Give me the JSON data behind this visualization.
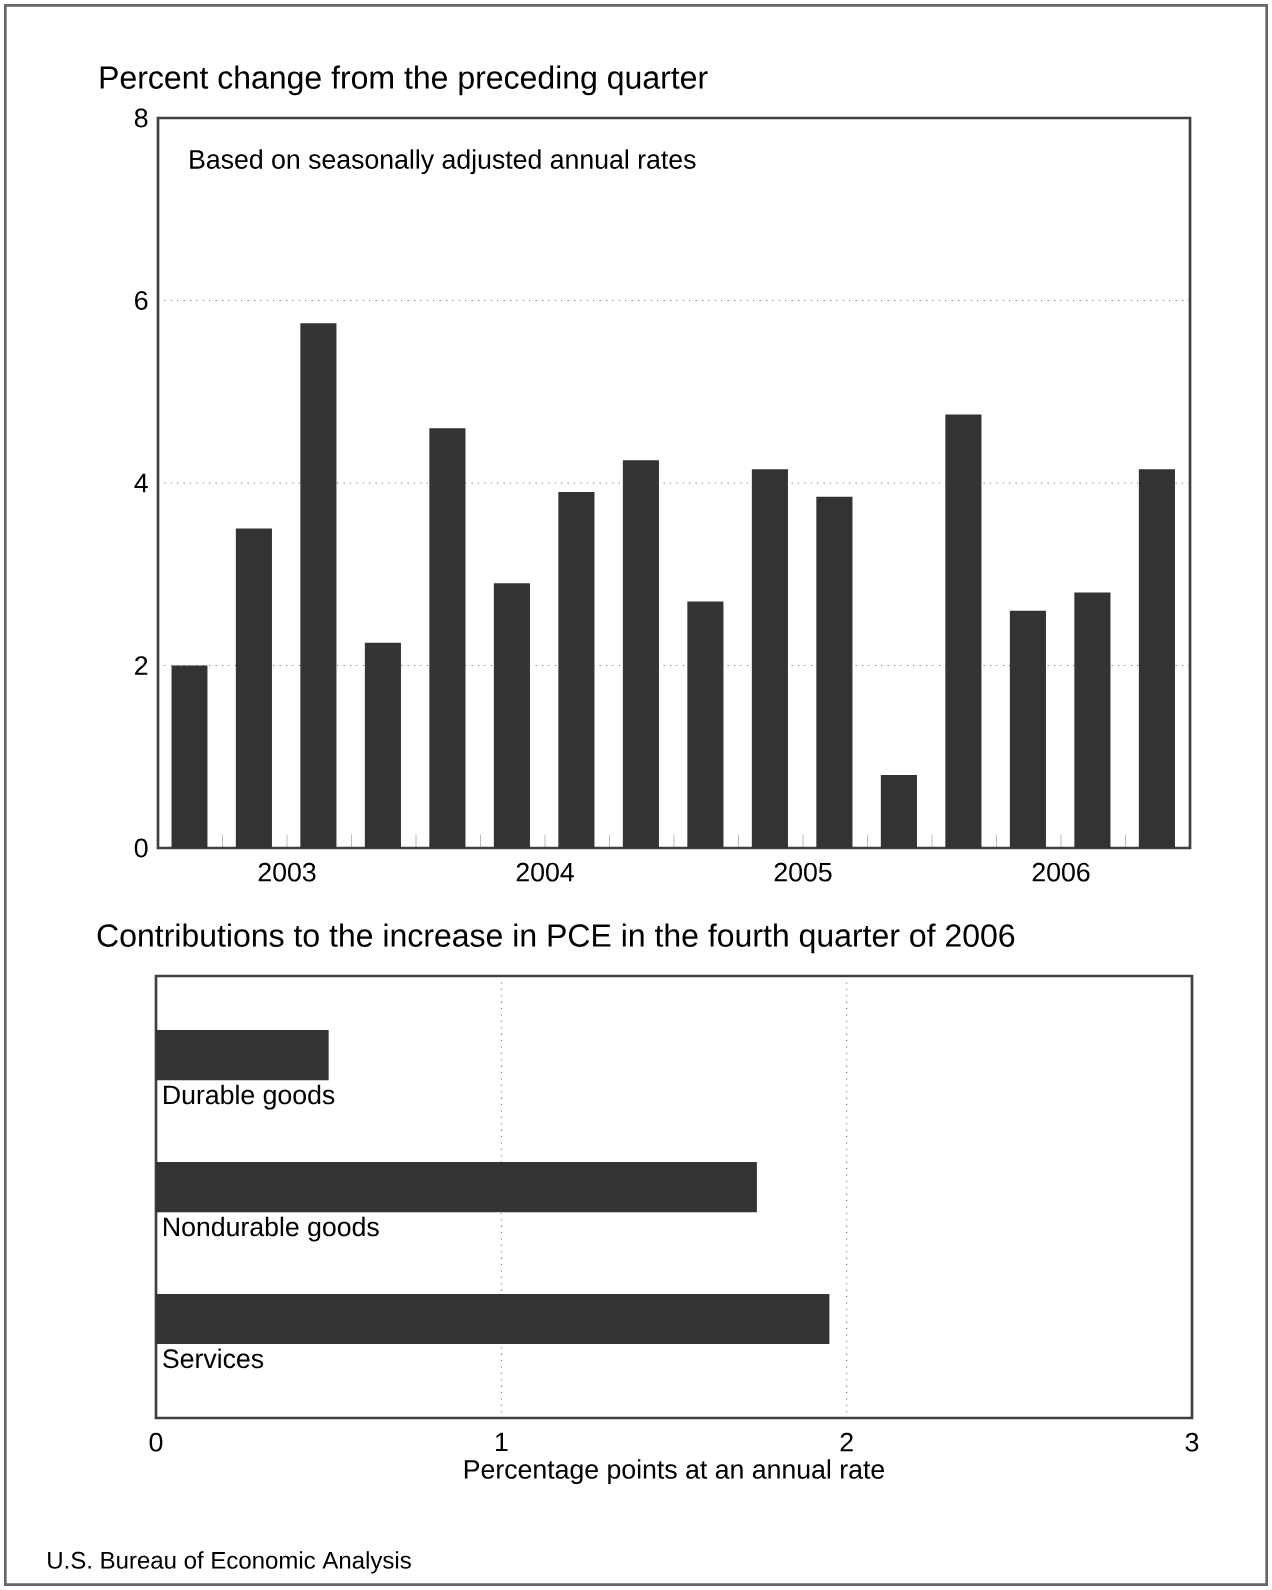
{
  "chart_data": [
    {
      "type": "bar",
      "title": "Percent change from the preceding quarter",
      "x": [
        "2003-02-15",
        "2003-05-15",
        "2003-08-15",
        "2003-11-15",
        "2004-02-15",
        "2004-05-15",
        "2004-08-15",
        "2004-11-15",
        "2005-02-15",
        "2005-05-15",
        "2005-08-15",
        "2005-11-15",
        "2006-02-15",
        "2006-05-15",
        "2006-08-15",
        "2006-11-15"
      ],
      "values": [
        2.0,
        3.5,
        5.75,
        2.25,
        4.6,
        2.9,
        3.9,
        4.25,
        2.7,
        4.15,
        3.85,
        0.8,
        4.75,
        2.6,
        2.8,
        4.15
      ],
      "color": "#333333",
      "xlim": [
        "2003-01-01",
        "2007-01-01"
      ],
      "xticks": [
        {
          "value": "2003-04-01",
          "label": null
        },
        {
          "value": "2003-07-01",
          "label": "2003"
        },
        {
          "value": "2003-10-01",
          "label": null
        },
        {
          "value": "2004-01-01",
          "label": null
        },
        {
          "value": "2004-04-01",
          "label": null
        },
        {
          "value": "2004-07-01",
          "label": "2004"
        },
        {
          "value": "2004-10-01",
          "label": null
        },
        {
          "value": "2005-01-01",
          "label": null
        },
        {
          "value": "2005-04-01",
          "label": null
        },
        {
          "value": "2005-07-01",
          "label": "2005"
        },
        {
          "value": "2005-10-01",
          "label": null
        },
        {
          "value": "2006-01-01",
          "label": null
        },
        {
          "value": "2006-04-01",
          "label": null
        },
        {
          "value": "2006-07-01",
          "label": "2006"
        },
        {
          "value": "2006-10-01",
          "label": null
        }
      ],
      "ylim": [
        0,
        8
      ],
      "yticks": [
        0,
        2,
        4,
        6,
        8
      ],
      "grid": "y",
      "annotations": [
        "Based on seasonally adjusted annual rates"
      ]
    },
    {
      "type": "bar",
      "orientation": "horizontal",
      "title": "Contributions to the increase in PCE in the fourth quarter of 2006",
      "categories": [
        "Durable goods",
        "Nondurable goods",
        "Services"
      ],
      "values": [
        0.5,
        1.74,
        1.95
      ],
      "color": "#333333",
      "xlim": [
        0,
        3
      ],
      "xticks": [
        0,
        1,
        2,
        3
      ],
      "grid": "x",
      "xlabel": "Percentage points at an annual rate",
      "annotations": [
        "U.S. Bureau of Economic Analysis"
      ]
    }
  ]
}
